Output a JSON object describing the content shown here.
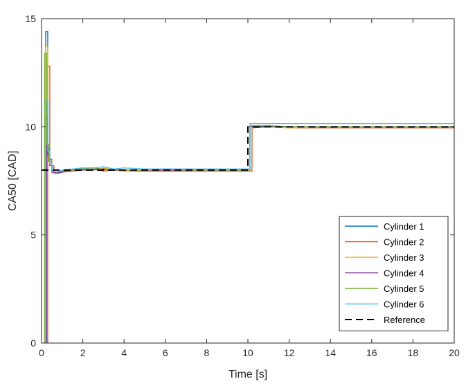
{
  "chart_data": {
    "type": "line",
    "title": "",
    "xlabel": "Time [s]",
    "ylabel": "CA50 [CAD]",
    "xlim": [
      0,
      20
    ],
    "ylim": [
      0,
      15
    ],
    "x_ticks": [
      0,
      2,
      4,
      6,
      8,
      10,
      12,
      14,
      16,
      18,
      20
    ],
    "y_ticks": [
      0,
      5,
      10,
      15
    ],
    "grid": false,
    "legend_position": "bottom-right",
    "series": [
      {
        "name": "Cylinder 1",
        "color": "#0072BD",
        "dash": "solid",
        "x": [
          0.2,
          0.2,
          0.3,
          0.3,
          0.4,
          0.4,
          0.5,
          0.5,
          0.6,
          0.6,
          0.8,
          1.0,
          1.5,
          2.0,
          2.5,
          3.0,
          3.5,
          4.0,
          5.0,
          6.0,
          7.0,
          8.0,
          9.0,
          10.1,
          10.1,
          11.0,
          12.0,
          14.0,
          16.0,
          18.0,
          20.0
        ],
        "y": [
          0,
          14.4,
          14.4,
          9.0,
          9.0,
          8.4,
          8.4,
          8.1,
          8.1,
          7.9,
          7.9,
          7.95,
          8.0,
          8.05,
          8.1,
          8.05,
          8.0,
          8.0,
          8.0,
          8.0,
          8.0,
          8.0,
          8.0,
          8.0,
          10.0,
          10.05,
          10.0,
          10.0,
          10.0,
          10.0,
          10.0
        ]
      },
      {
        "name": "Cylinder 2",
        "color": "#D95319",
        "dash": "solid",
        "x": [
          0.3,
          0.3,
          0.4,
          0.4,
          0.5,
          0.5,
          0.6,
          0.6,
          0.8,
          1.0,
          1.5,
          2.0,
          2.5,
          3.0,
          3.5,
          4.0,
          5.0,
          6.0,
          7.0,
          8.0,
          9.0,
          10.2,
          10.2,
          11.0,
          12.0,
          14.0,
          16.0,
          18.0,
          20.0
        ],
        "y": [
          0,
          12.8,
          12.8,
          8.5,
          8.5,
          8.2,
          8.2,
          7.9,
          7.85,
          7.9,
          7.95,
          8.0,
          8.05,
          7.95,
          8.0,
          7.95,
          7.95,
          7.95,
          7.95,
          7.95,
          7.95,
          7.95,
          9.95,
          10.0,
          9.95,
          9.95,
          9.95,
          9.95,
          9.95
        ]
      },
      {
        "name": "Cylinder 3",
        "color": "#EDB120",
        "dash": "solid",
        "x": [
          0.2,
          0.2,
          0.3,
          0.3,
          0.4,
          0.4,
          0.5,
          0.5,
          0.7,
          1.0,
          1.5,
          2.0,
          2.5,
          3.0,
          3.5,
          4.0,
          5.0,
          6.0,
          7.0,
          8.0,
          9.0,
          10.1,
          10.1,
          11.0,
          12.0,
          14.0,
          16.0,
          18.0,
          20.0
        ],
        "y": [
          0,
          13.7,
          13.7,
          8.8,
          8.8,
          8.3,
          8.3,
          8.0,
          7.9,
          8.0,
          8.05,
          8.1,
          8.0,
          8.1,
          8.0,
          7.95,
          8.0,
          8.0,
          8.0,
          8.0,
          8.0,
          8.0,
          10.0,
          10.0,
          9.95,
          10.0,
          10.0,
          10.0,
          10.0
        ]
      },
      {
        "name": "Cylinder 4",
        "color": "#7E2F8E",
        "dash": "solid",
        "x": [
          0.25,
          0.25,
          0.3,
          0.3,
          0.4,
          0.4,
          0.5,
          0.5,
          0.7,
          1.0,
          1.5,
          2.0,
          2.5,
          3.0,
          3.5,
          4.0,
          5.0,
          6.0,
          7.0,
          8.0,
          9.0,
          10.1,
          10.1,
          11.0,
          12.0,
          14.0,
          16.0,
          18.0,
          20.0
        ],
        "y": [
          0,
          10.5,
          10.5,
          8.7,
          8.7,
          8.2,
          8.2,
          7.9,
          7.85,
          7.9,
          8.0,
          8.0,
          8.0,
          8.05,
          8.0,
          8.0,
          8.0,
          8.0,
          8.0,
          8.0,
          8.0,
          8.0,
          10.0,
          10.0,
          10.0,
          10.0,
          10.0,
          10.0,
          10.0
        ]
      },
      {
        "name": "Cylinder 5",
        "color": "#77AC30",
        "dash": "solid",
        "x": [
          0.15,
          0.15,
          0.25,
          0.25,
          0.35,
          0.35,
          0.5,
          0.5,
          0.7,
          1.0,
          1.5,
          2.0,
          2.5,
          3.0,
          3.5,
          4.0,
          5.0,
          6.0,
          7.0,
          8.0,
          9.0,
          10.1,
          10.1,
          11.0,
          12.0,
          14.0,
          16.0,
          18.0,
          20.0
        ],
        "y": [
          0,
          13.4,
          13.4,
          9.2,
          9.2,
          8.4,
          8.4,
          8.0,
          7.9,
          7.95,
          8.0,
          8.05,
          8.1,
          8.0,
          8.05,
          8.0,
          8.0,
          8.05,
          8.0,
          8.0,
          8.0,
          8.0,
          10.05,
          10.05,
          10.0,
          10.0,
          10.0,
          10.0,
          10.0
        ]
      },
      {
        "name": "Cylinder 6",
        "color": "#4DBEEE",
        "dash": "solid",
        "x": [
          0.2,
          0.2,
          0.3,
          0.3,
          0.4,
          0.4,
          0.5,
          0.5,
          0.7,
          1.0,
          1.5,
          2.0,
          2.5,
          3.0,
          3.5,
          4.0,
          5.0,
          6.0,
          7.0,
          8.0,
          9.0,
          10.1,
          10.1,
          11.0,
          12.0,
          14.0,
          16.0,
          18.0,
          20.0
        ],
        "y": [
          0,
          11.2,
          11.2,
          8.9,
          8.9,
          8.3,
          8.3,
          8.0,
          7.9,
          8.0,
          8.05,
          8.1,
          8.1,
          8.15,
          8.05,
          8.1,
          8.05,
          8.05,
          8.05,
          8.05,
          8.05,
          8.05,
          10.15,
          10.15,
          10.15,
          10.15,
          10.15,
          10.15,
          10.15
        ]
      },
      {
        "name": "Reference",
        "color": "#000000",
        "dash": "dashed",
        "x": [
          0,
          10,
          10,
          20
        ],
        "y": [
          8,
          8,
          10,
          10
        ]
      }
    ]
  }
}
